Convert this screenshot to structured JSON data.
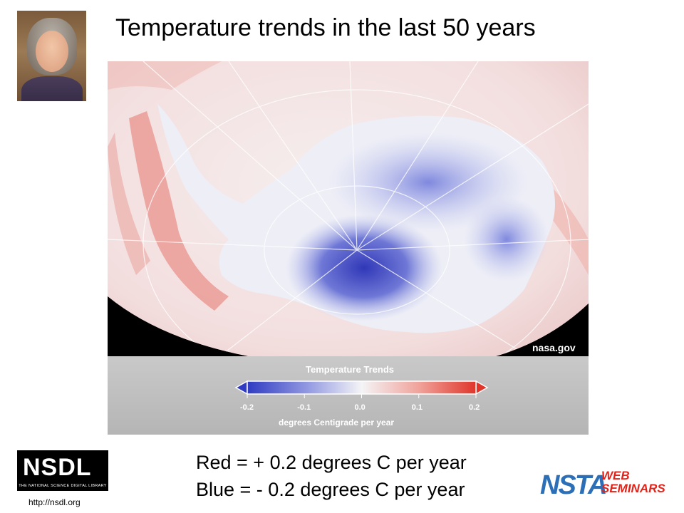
{
  "slide": {
    "title": "Temperature trends in the last 50 years",
    "caption_line1": "Red = + 0.2 degrees C per year",
    "caption_line2": "Blue = - 0.2 degrees C per year"
  },
  "map": {
    "credit": "nasa.gov",
    "legend_title": "Temperature Trends",
    "legend_ticks": [
      "-0.2",
      "-0.1",
      "0.0",
      "0.1",
      "0.2"
    ],
    "legend_unit": "degrees Centigrade per year",
    "colors": {
      "cold": "#3a44c8",
      "neutral": "#f4f4f6",
      "warm": "#e03a2e"
    }
  },
  "logos": {
    "nsdl_letters": "NSDL",
    "nsdl_tagline": "THE NATIONAL SCIENCE DIGITAL LIBRARY",
    "nsdl_url": "http://nsdl.org",
    "nsta_main": "NSTA",
    "nsta_web": "WEB",
    "nsta_seminars": "SEMINARS"
  },
  "icons": {
    "presenter_photo": "presenter-photo"
  }
}
